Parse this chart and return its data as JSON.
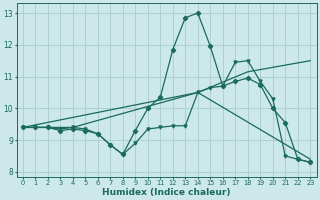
{
  "xlabel": "Humidex (Indice chaleur)",
  "xlim": [
    -0.5,
    23.5
  ],
  "ylim": [
    7.85,
    13.3
  ],
  "yticks": [
    8,
    9,
    10,
    11,
    12,
    13
  ],
  "xticks": [
    0,
    1,
    2,
    3,
    4,
    5,
    6,
    7,
    8,
    9,
    10,
    11,
    12,
    13,
    14,
    15,
    16,
    17,
    18,
    19,
    20,
    21,
    22,
    23
  ],
  "bg_color": "#cce8e8",
  "grid_color": "#aacccc",
  "line_color": "#1a6b5a",
  "line1_x": [
    0,
    1,
    2,
    3,
    4,
    5,
    6,
    7,
    8,
    9,
    10,
    11,
    12,
    13,
    14,
    15,
    16,
    17,
    18,
    19,
    20,
    21,
    22,
    23
  ],
  "line1_y": [
    9.4,
    9.4,
    9.4,
    9.3,
    9.35,
    9.3,
    9.2,
    8.85,
    8.55,
    9.3,
    10.0,
    10.35,
    11.85,
    12.85,
    13.0,
    11.95,
    10.7,
    10.85,
    10.95,
    10.75,
    10.0,
    9.55,
    8.4,
    8.3
  ],
  "line2_x": [
    0,
    1,
    2,
    3,
    4,
    5,
    6,
    7,
    8,
    9,
    10,
    11,
    12,
    13,
    14,
    15,
    16,
    17,
    18,
    19,
    20,
    21,
    22,
    23
  ],
  "line2_y": [
    9.4,
    9.4,
    9.4,
    9.35,
    9.4,
    9.35,
    9.2,
    8.85,
    8.55,
    8.9,
    9.35,
    9.4,
    9.45,
    9.45,
    10.5,
    10.65,
    10.7,
    11.45,
    11.5,
    10.85,
    10.3,
    8.5,
    8.4,
    8.3
  ],
  "line3_x": [
    0,
    4,
    14,
    18,
    23
  ],
  "line3_y": [
    9.4,
    9.4,
    10.5,
    11.15,
    11.5
  ],
  "line4_x": [
    0,
    14,
    23
  ],
  "line4_y": [
    9.4,
    10.5,
    8.4
  ]
}
